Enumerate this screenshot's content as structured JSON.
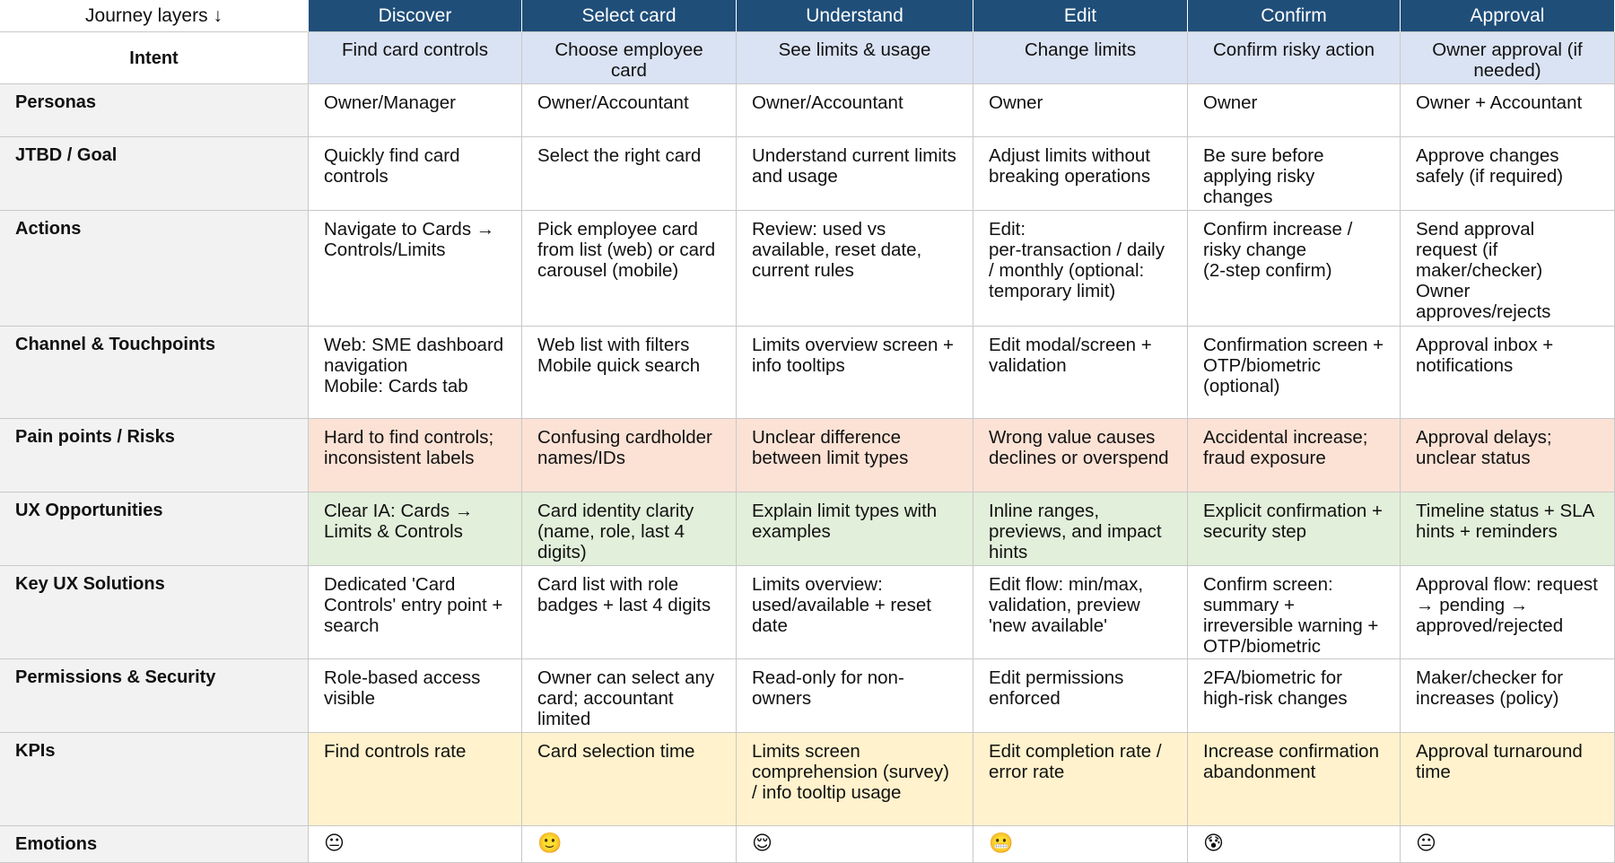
{
  "header": {
    "corner": "Journey layers ↓",
    "stages": [
      "Discover",
      "Select card",
      "Understand",
      "Edit",
      "Confirm",
      "Approval"
    ]
  },
  "rows": [
    {
      "label": "Intent",
      "cells": [
        "Find card controls",
        "Choose employee card",
        "See limits & usage",
        "Change limits",
        "Confirm risky action",
        "Owner approval (if needed)"
      ]
    },
    {
      "label": "Personas",
      "cells": [
        "Owner/Manager",
        "Owner/Accountant",
        "Owner/Accountant",
        "Owner",
        "Owner",
        "Owner + Accountant"
      ]
    },
    {
      "label": "JTBD / Goal",
      "cells": [
        "Quickly find card controls",
        "Select the right card",
        "Understand current limits and usage",
        "Adjust limits without breaking operations",
        "Be sure before applying risky changes",
        "Approve changes safely (if required)"
      ]
    },
    {
      "label": "Actions",
      "cells": [
        "Navigate to Cards → Controls/Limits",
        "Pick employee card from list (web) or card carousel (mobile)",
        "Review: used vs available, reset date, current rules",
        "Edit:\nper-transaction / daily / monthly (optional: temporary limit)",
        "Confirm increase / risky change\n(2-step confirm)",
        "Send approval request (if maker/checker)\nOwner approves/rejects"
      ]
    },
    {
      "label": "Channel & Touchpoints",
      "cells": [
        "Web: SME dashboard navigation\nMobile: Cards tab",
        "Web list with filters\nMobile quick search",
        "Limits overview screen + info tooltips",
        "Edit modal/screen + validation",
        "Confirmation screen + OTP/biometric (optional)",
        "Approval inbox + notifications"
      ]
    },
    {
      "label": "Pain points / Risks",
      "cells": [
        "Hard to find controls; inconsistent labels",
        "Confusing cardholder names/IDs",
        "Unclear difference between limit types",
        "Wrong value causes declines or overspend",
        "Accidental increase; fraud exposure",
        "Approval delays; unclear status"
      ]
    },
    {
      "label": "UX Opportunities",
      "cells": [
        "Clear IA: Cards → Limits & Controls",
        "Card identity clarity (name, role, last 4 digits)",
        "Explain limit types with examples",
        "Inline ranges, previews, and impact hints",
        "Explicit confirmation + security step",
        "Timeline status + SLA hints + reminders"
      ]
    },
    {
      "label": "Key UX Solutions",
      "cells": [
        "Dedicated 'Card Controls' entry point + search",
        "Card list with role badges + last 4 digits",
        "Limits overview: used/available + reset date",
        "Edit flow: min/max, validation, preview 'new available'",
        "Confirm screen: summary + irreversible warning + OTP/biometric",
        "Approval flow: request → pending → approved/rejected"
      ]
    },
    {
      "label": "Permissions & Security",
      "cells": [
        "Role-based access visible",
        "Owner can select any card; accountant limited",
        "Read-only for non-owners",
        "Edit permissions enforced",
        "2FA/biometric for high-risk changes",
        "Maker/checker for increases (policy)"
      ]
    },
    {
      "label": "KPIs",
      "cells": [
        "Find controls rate",
        "Card selection time",
        "Limits screen comprehension (survey) / info tooltip usage",
        "Edit completion rate / error rate",
        "Increase confirmation abandonment",
        "Approval turnaround time"
      ]
    },
    {
      "label": "Emotions",
      "cells": [
        "😐",
        "🙂",
        "😌",
        "😬",
        "😰",
        "😐"
      ]
    }
  ]
}
